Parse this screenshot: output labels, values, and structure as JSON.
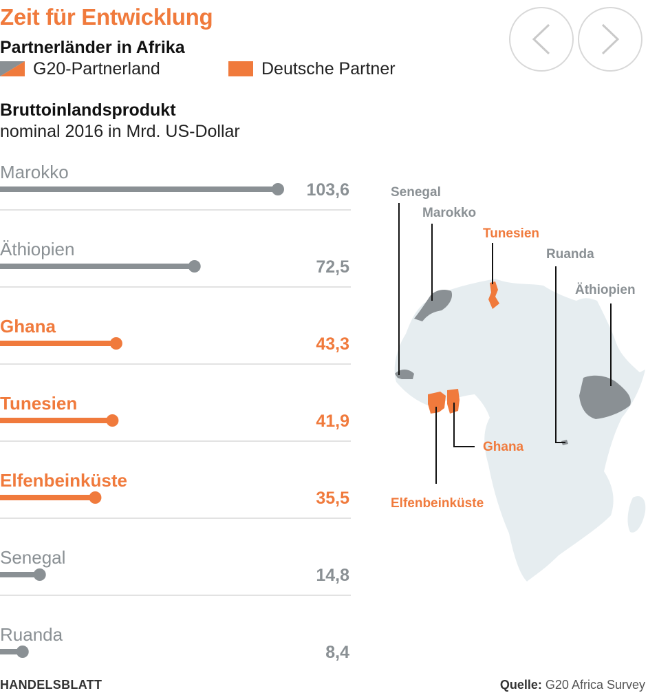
{
  "header": {
    "title": "Zeit für Entwicklung",
    "subtitle": "Partnerländer in Afrika"
  },
  "legend": {
    "g20": "G20-Partnerland",
    "german": "Deutsche Partner"
  },
  "colors": {
    "g20": "#8a9094",
    "german": "#f07a3c",
    "map_land": "#e6edf0",
    "grid": "#d9d9d9"
  },
  "nav": {
    "prev_icon": "chevron-left-icon",
    "next_icon": "chevron-right-icon"
  },
  "chart_data": {
    "type": "bar",
    "title": "Bruttoinlandsprodukt",
    "subtitle": "nominal 2016 in Mrd. US-Dollar",
    "xlim": [
      0,
      103.6
    ],
    "series_groups": [
      "G20-Partnerland",
      "Deutsche Partner"
    ],
    "bars": [
      {
        "label": "Marokko",
        "value": 103.6,
        "display": "103,6",
        "group": "g20"
      },
      {
        "label": "Äthiopien",
        "value": 72.5,
        "display": "72,5",
        "group": "g20"
      },
      {
        "label": "Ghana",
        "value": 43.3,
        "display": "43,3",
        "group": "german"
      },
      {
        "label": "Tunesien",
        "value": 41.9,
        "display": "41,9",
        "group": "german"
      },
      {
        "label": "Elfenbeinküste",
        "value": 35.5,
        "display": "35,5",
        "group": "german"
      },
      {
        "label": "Senegal",
        "value": 14.8,
        "display": "14,8",
        "group": "g20"
      },
      {
        "label": "Ruanda",
        "value": 8.4,
        "display": "8,4",
        "group": "g20"
      }
    ]
  },
  "map": {
    "labels": {
      "senegal": "Senegal",
      "marokko": "Marokko",
      "tunesien": "Tunesien",
      "ruanda": "Ruanda",
      "aethiopien": "Äthiopien",
      "ghana": "Ghana",
      "elfenbeinkueste": "Elfenbeinküste"
    }
  },
  "footer": {
    "brand": "HANDELSBLATT",
    "source_label": "Quelle:",
    "source": "G20 Africa Survey"
  }
}
